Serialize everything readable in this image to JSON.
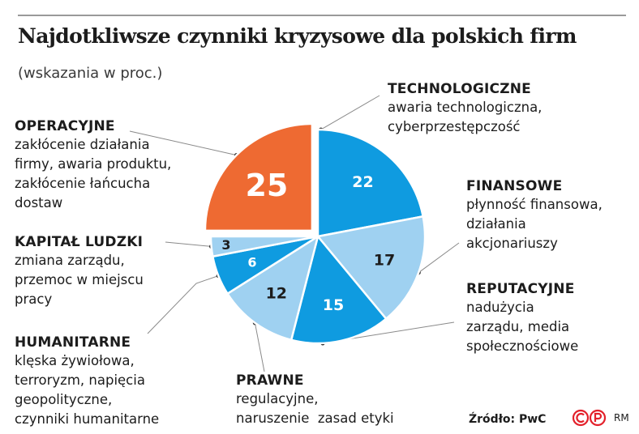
{
  "header": {
    "title": "Najdotkliwsze czynniki kryzysowe dla polskich firm",
    "subtitle": "(wskazania w proc.)"
  },
  "colors": {
    "dark_blue": "#0f9be0",
    "light_blue": "#9fd1f1",
    "orange": "#ee6a32",
    "leader_gray": "#8a8a8a"
  },
  "chart_data": {
    "type": "pie",
    "title": "Najdotkliwsze czynniki kryzysowe dla polskich firm",
    "subtitle": "(wskazania w proc.)",
    "unit": "%",
    "slices": [
      {
        "label": "TECHNOLOGICZNE",
        "value": 22,
        "description": [
          "awaria technologiczna,",
          "cyberprzestępczość"
        ],
        "color": "#0f9be0"
      },
      {
        "label": "FINANSOWE",
        "value": 17,
        "description": [
          "płynność finansowa,",
          "działania",
          "akcjonariuszy"
        ],
        "color": "#9fd1f1"
      },
      {
        "label": "REPUTACYJNE",
        "value": 15,
        "description": [
          "nadużycia",
          "zarządu, media",
          "społecznościowe"
        ],
        "color": "#0f9be0"
      },
      {
        "label": "PRAWNE",
        "value": 12,
        "description": [
          "regulacyjne,",
          "naruszenie  zasad etyki"
        ],
        "color": "#9fd1f1"
      },
      {
        "label": "HUMANITARNE",
        "value": 6,
        "description": [
          "klęska żywiołowa,",
          "terroryzm, napięcia",
          "geopolityczne,",
          "czynniki humanitarne"
        ],
        "color": "#0f9be0"
      },
      {
        "label": "KAPITAŁ LUDZKI",
        "value": 3,
        "description": [
          "zmiana zarządu,",
          "przemoc w miejscu",
          "pracy"
        ],
        "color": "#9fd1f1"
      },
      {
        "label": "OPERACYJNE",
        "value": 25,
        "description": [
          "zakłócenie działania",
          "firmy, awaria produktu,",
          "zakłócenie łańcucha",
          "dostaw"
        ],
        "color": "#ee6a32",
        "exploded": true
      }
    ]
  },
  "footer": {
    "source": "Źródło: PwC",
    "logo_text": "RM"
  }
}
